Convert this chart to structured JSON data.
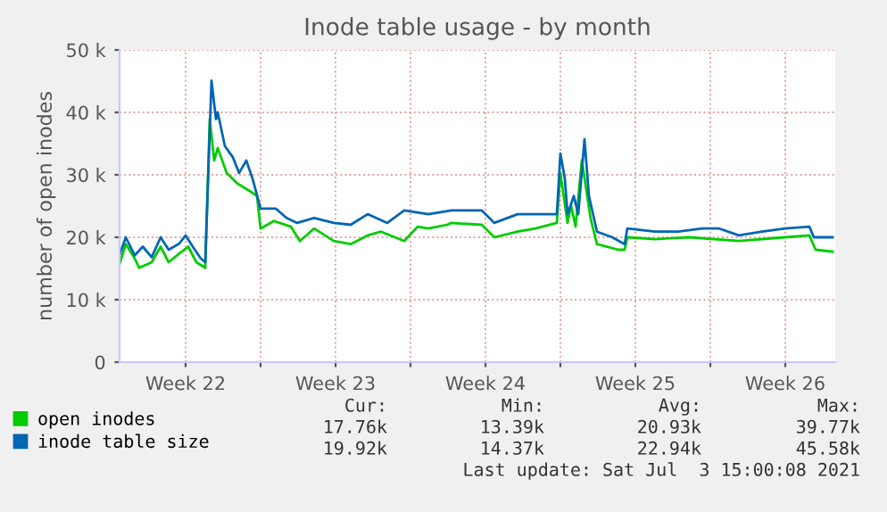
{
  "chart_data": {
    "type": "line",
    "title": "Inode table usage - by month",
    "ylabel": "number of open inodes",
    "xlim": [
      "2021-05-31T10:00",
      "2021-07-03T20:00"
    ],
    "xticks": [
      {
        "value": "2021-06-03T12:00",
        "label": "Week 22"
      },
      {
        "value": "2021-06-07",
        "label": null
      },
      {
        "value": "2021-06-10T12:00",
        "label": "Week 23"
      },
      {
        "value": "2021-06-14",
        "label": null
      },
      {
        "value": "2021-06-17T12:00",
        "label": "Week 24"
      },
      {
        "value": "2021-06-21",
        "label": null
      },
      {
        "value": "2021-06-24T12:00",
        "label": "Week 25"
      },
      {
        "value": "2021-06-28",
        "label": null
      },
      {
        "value": "2021-07-01T12:00",
        "label": "Week 26"
      }
    ],
    "ylim": [
      0,
      50000
    ],
    "yticks": [
      0,
      {
        "value": 10000,
        "label": "10 k"
      },
      {
        "value": 20000,
        "label": "20 k"
      },
      {
        "value": 30000,
        "label": "30 k"
      },
      {
        "value": 40000,
        "label": "40 k"
      },
      {
        "value": 50000,
        "label": "50 k"
      }
    ],
    "grid": true,
    "legend": "bottom",
    "series": [
      {
        "name": "open inodes",
        "color": "#00cc00",
        "x": [
          "2021-05-31T10:00",
          "2021-05-31T17:00",
          "2021-06-01T03:00",
          "2021-06-01T08:00",
          "2021-06-01T22:00",
          "2021-06-02T08:00",
          "2021-06-02T17:00",
          "2021-06-03T05:00",
          "2021-06-03T15:00",
          "2021-06-04T00:00",
          "2021-06-04T10:00",
          "2021-06-04T15:00",
          "2021-06-04T20:00",
          "2021-06-05T00:00",
          "2021-06-05T10:00",
          "2021-06-05T22:00",
          "2021-06-06T12:00",
          "2021-06-06T20:00",
          "2021-06-07T00:00",
          "2021-06-07T15:00",
          "2021-06-08T10:00",
          "2021-06-08T20:00",
          "2021-06-09T12:00",
          "2021-06-10T10:00",
          "2021-06-11T05:00",
          "2021-06-12T00:00",
          "2021-06-12T15:00",
          "2021-06-13T17:00",
          "2021-06-14T08:00",
          "2021-06-14T20:00",
          "2021-06-15T17:00",
          "2021-06-15T22:00",
          "2021-06-17T08:00",
          "2021-06-17T22:00",
          "2021-06-19T00:00",
          "2021-06-19T20:00",
          "2021-06-20T20:00",
          "2021-06-21T00:00",
          "2021-06-21T08:00",
          "2021-06-21T12:00",
          "2021-06-21T17:00",
          "2021-06-22T00:00",
          "2021-06-22T10:00",
          "2021-06-22T17:00",
          "2021-06-23T17:00",
          "2021-06-24T00:00",
          "2021-06-24T03:00",
          "2021-06-25T10:00",
          "2021-06-27T00:00",
          "2021-06-29T08:00",
          "2021-07-01T12:00",
          "2021-07-02T15:00",
          "2021-07-02T22:00",
          "2021-07-03T17:00"
        ],
        "values": [
          15700,
          18900,
          16600,
          15100,
          16000,
          18500,
          16000,
          17400,
          18500,
          16000,
          15100,
          38900,
          32300,
          34300,
          30300,
          28600,
          27400,
          26600,
          21400,
          22600,
          21700,
          19400,
          21400,
          19400,
          18900,
          20300,
          20900,
          19400,
          21700,
          21400,
          22000,
          22300,
          22000,
          20000,
          20900,
          21400,
          22300,
          30300,
          22300,
          25100,
          21700,
          32300,
          22900,
          18900,
          18000,
          18000,
          20000,
          19700,
          20000,
          19400,
          20000,
          20300,
          18000,
          17700
        ]
      },
      {
        "name": "inode table size",
        "color": "#0066b3",
        "x": [
          "2021-05-31T10:00",
          "2021-05-31T17:00",
          "2021-06-01T03:00",
          "2021-06-01T12:00",
          "2021-06-01T22:00",
          "2021-06-02T08:00",
          "2021-06-02T17:00",
          "2021-06-03T05:00",
          "2021-06-03T12:00",
          "2021-06-03T20:00",
          "2021-06-04T05:00",
          "2021-06-04T10:00",
          "2021-06-04T17:00",
          "2021-06-04T22:00",
          "2021-06-05T00:00",
          "2021-06-05T08:00",
          "2021-06-05T17:00",
          "2021-06-06T00:00",
          "2021-06-06T08:00",
          "2021-06-06T15:00",
          "2021-06-07T00:00",
          "2021-06-07T17:00",
          "2021-06-08T05:00",
          "2021-06-08T17:00",
          "2021-06-09T12:00",
          "2021-06-10T10:00",
          "2021-06-11T05:00",
          "2021-06-12T00:00",
          "2021-06-12T22:00",
          "2021-06-13T17:00",
          "2021-06-14T20:00",
          "2021-06-15T22:00",
          "2021-06-17T08:00",
          "2021-06-17T22:00",
          "2021-06-19T00:00",
          "2021-06-19T20:00",
          "2021-06-20T20:00",
          "2021-06-21T00:00",
          "2021-06-21T05:00",
          "2021-06-21T08:00",
          "2021-06-21T15:00",
          "2021-06-21T20:00",
          "2021-06-22T03:00",
          "2021-06-22T08:00",
          "2021-06-22T17:00",
          "2021-06-23T10:00",
          "2021-06-24T00:00",
          "2021-06-24T03:00",
          "2021-06-25T10:00",
          "2021-06-26T12:00",
          "2021-06-27T15:00",
          "2021-06-28T10:00",
          "2021-06-29T08:00",
          "2021-06-30T10:00",
          "2021-07-01T12:00",
          "2021-07-02T15:00",
          "2021-07-02T20:00",
          "2021-07-03T17:00"
        ],
        "values": [
          17200,
          20000,
          17100,
          18500,
          16800,
          20000,
          18000,
          19000,
          20300,
          18500,
          16600,
          16000,
          45100,
          38900,
          40000,
          34600,
          32800,
          30300,
          32300,
          29400,
          24600,
          24600,
          23100,
          22300,
          23100,
          22300,
          22000,
          23700,
          22300,
          24300,
          23700,
          24300,
          24300,
          22300,
          23700,
          23700,
          23700,
          33400,
          29400,
          23700,
          26600,
          23700,
          35700,
          26600,
          20900,
          20000,
          18900,
          21400,
          20900,
          20900,
          21400,
          21400,
          20300,
          20900,
          21400,
          21700,
          20000,
          20000
        ]
      }
    ],
    "annotations": [
      "Cur:",
      "Min:",
      "Avg:",
      "Max:",
      "17.76k",
      "13.39k",
      "20.93k",
      "39.77k",
      "19.92k",
      "14.37k",
      "22.94k",
      "45.58k",
      "Last update: Sat Jul  3 15:00:08 2021"
    ]
  }
}
